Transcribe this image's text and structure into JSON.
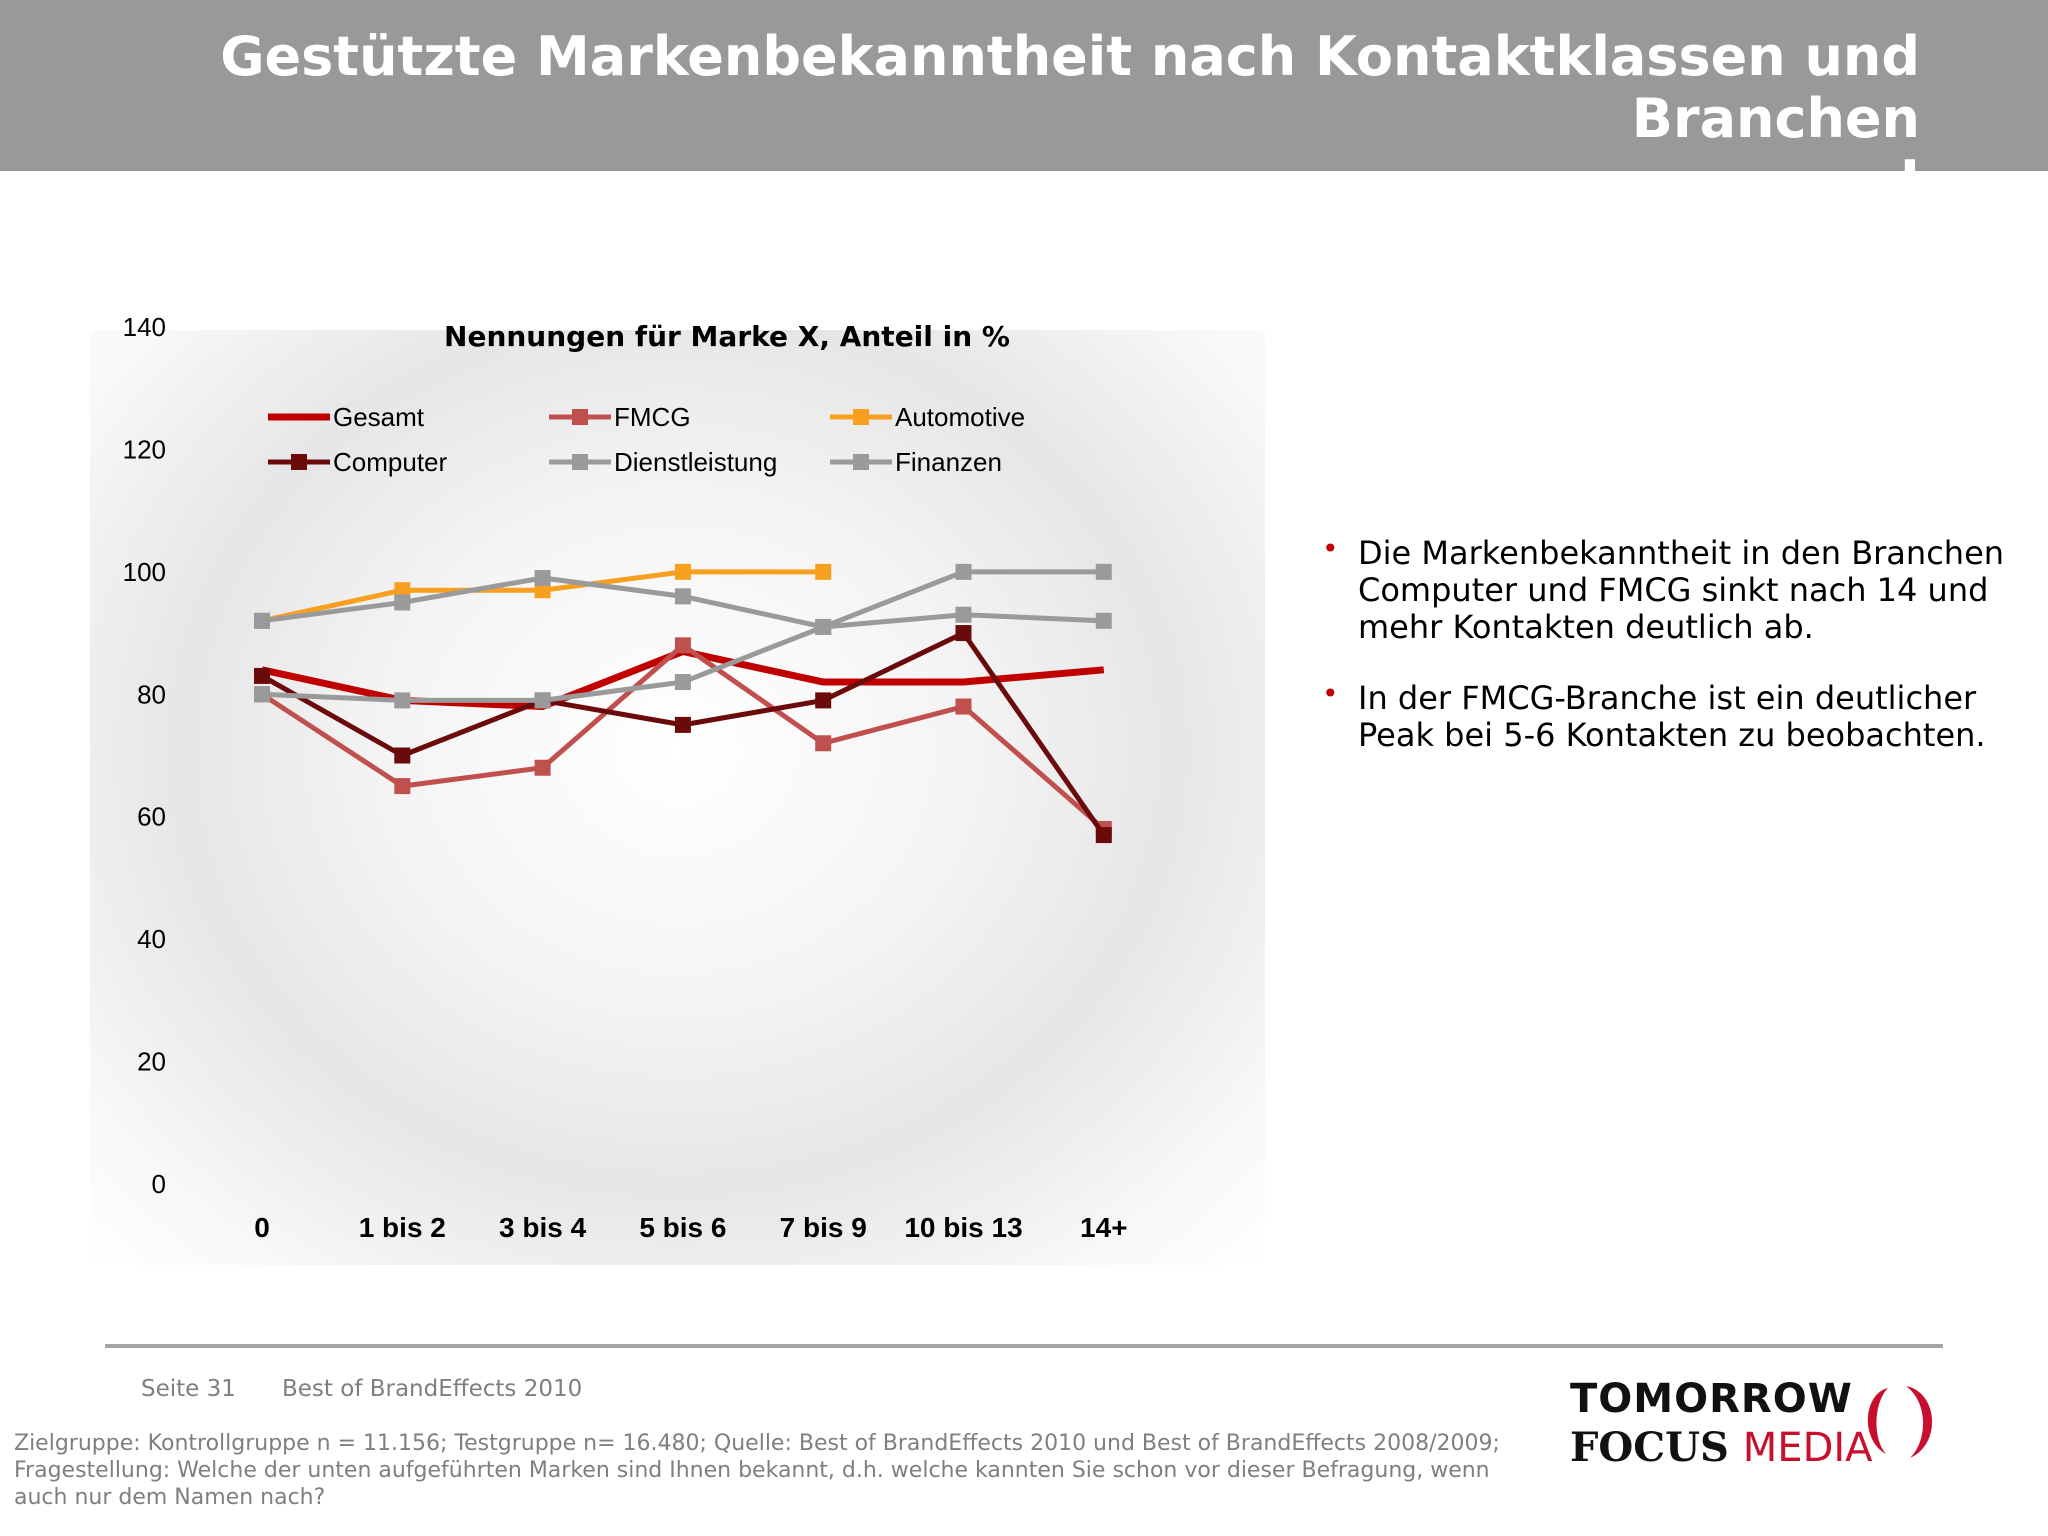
{
  "header": {
    "title": "Gestützte Markenbekanntheit nach Kontaktklassen und Branchen I"
  },
  "chart_data": {
    "type": "line",
    "title": "Nennungen für Marke X, Anteil in %",
    "xlabel": "",
    "ylabel": "",
    "ylim": [
      0,
      140
    ],
    "yticks": [
      0,
      20,
      40,
      60,
      80,
      100,
      120,
      140
    ],
    "categories": [
      "0",
      "1 bis 2",
      "3 bis 4",
      "5 bis 6",
      "7 bis 9",
      "10 bis 13",
      "14+"
    ],
    "grid": false,
    "legend_position": "top",
    "series": [
      {
        "name": "Gesamt",
        "color": "#c00000",
        "marker": "none",
        "values": [
          84,
          79,
          78,
          87,
          82,
          82,
          84
        ]
      },
      {
        "name": "FMCG",
        "color": "#c0504d",
        "marker": "square",
        "values": [
          80,
          65,
          68,
          88,
          72,
          78,
          58
        ]
      },
      {
        "name": "Automotive",
        "color": "#f79f1f",
        "marker": "square",
        "values": [
          92,
          97,
          97,
          100,
          100,
          null,
          null
        ]
      },
      {
        "name": "Computer",
        "color": "#6b0a0a",
        "marker": "square",
        "values": [
          83,
          70,
          79,
          75,
          79,
          90,
          57
        ]
      },
      {
        "name": "Dienstleistung",
        "color": "#9a9a9a",
        "marker": "square",
        "values": [
          80,
          79,
          79,
          82,
          91,
          100,
          100
        ]
      },
      {
        "name": "Finanzen",
        "color": "#9a9a9a",
        "marker": "square",
        "values": [
          92,
          95,
          99,
          96,
          91,
          93,
          92
        ]
      }
    ]
  },
  "bullets": [
    "Die Markenbekanntheit in den Branchen Computer und FMCG sinkt nach 14 und mehr Kontakten deutlich ab.",
    "In der FMCG-Branche ist ein deutlicher Peak bei 5-6 Kontakten zu beobachten."
  ],
  "footer": {
    "page": "Seite 31",
    "source_title": "Best of BrandEffects 2010",
    "footnote": "Zielgruppe: Kontrollgruppe n = 11.156; Testgruppe n= 16.480; Quelle: Best of BrandEffects 2010 und Best of BrandEffects 2008/2009; Fragestellung: Welche der unten aufgeführten Marken sind Ihnen bekannt, d.h. welche kannten Sie schon vor dieser Befragung, wenn auch nur dem Namen nach?"
  },
  "logo": {
    "line1": "TOMORROW",
    "line2a": "FOCUS",
    "line2b": "MEDIA"
  },
  "colors": {
    "header_bg": "#999999",
    "accent": "#c00000"
  }
}
